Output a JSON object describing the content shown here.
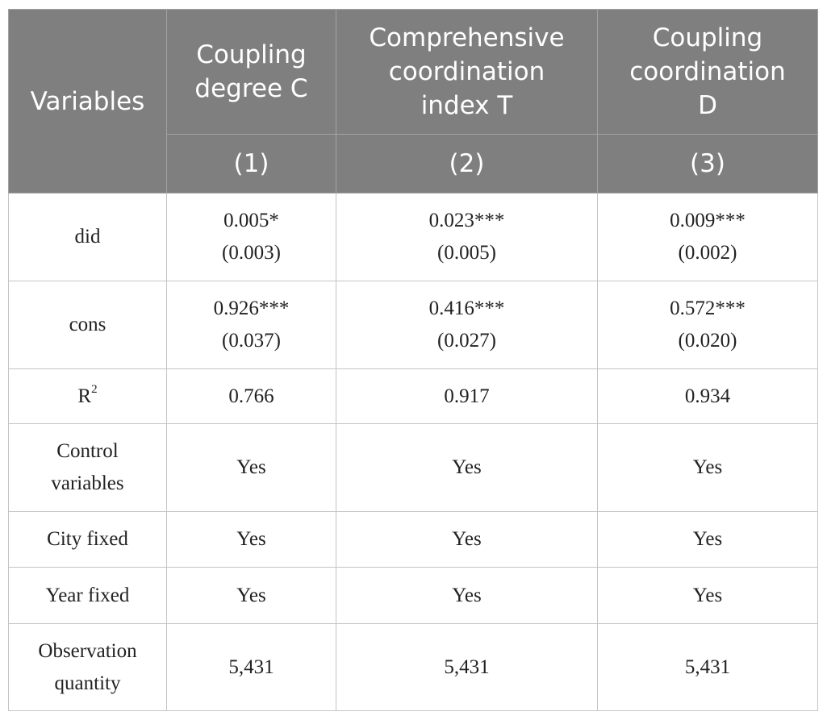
{
  "header": {
    "variables": "Variables",
    "columns": [
      {
        "title_lines": [
          "Coupling",
          "degree C"
        ],
        "number": "(1)"
      },
      {
        "title_lines": [
          "Comprehensive",
          "coordination",
          "index T"
        ],
        "number": "(2)"
      },
      {
        "title_lines": [
          "Coupling",
          "coordination",
          "D"
        ],
        "number": "(3)"
      }
    ]
  },
  "rows": [
    {
      "label_lines": [
        "did"
      ],
      "cells": [
        {
          "lines": [
            "0.005*",
            "(0.003)"
          ]
        },
        {
          "lines": [
            "0.023***",
            "(0.005)"
          ]
        },
        {
          "lines": [
            "0.009***",
            "(0.002)"
          ]
        }
      ]
    },
    {
      "label_lines": [
        "cons"
      ],
      "cells": [
        {
          "lines": [
            "0.926***",
            "(0.037)"
          ]
        },
        {
          "lines": [
            "0.416***",
            "(0.027)"
          ]
        },
        {
          "lines": [
            "0.572***",
            "(0.020)"
          ]
        }
      ]
    },
    {
      "label_base": "R",
      "label_sup": "2",
      "cells": [
        {
          "lines": [
            "0.766"
          ]
        },
        {
          "lines": [
            "0.917"
          ]
        },
        {
          "lines": [
            "0.934"
          ]
        }
      ]
    },
    {
      "label_lines": [
        "Control",
        "variables"
      ],
      "cells": [
        {
          "lines": [
            "Yes"
          ]
        },
        {
          "lines": [
            "Yes"
          ]
        },
        {
          "lines": [
            "Yes"
          ]
        }
      ]
    },
    {
      "label_lines": [
        "City fixed"
      ],
      "cells": [
        {
          "lines": [
            "Yes"
          ]
        },
        {
          "lines": [
            "Yes"
          ]
        },
        {
          "lines": [
            "Yes"
          ]
        }
      ]
    },
    {
      "label_lines": [
        "Year fixed"
      ],
      "cells": [
        {
          "lines": [
            "Yes"
          ]
        },
        {
          "lines": [
            "Yes"
          ]
        },
        {
          "lines": [
            "Yes"
          ]
        }
      ]
    },
    {
      "label_lines": [
        "Observation",
        "quantity"
      ],
      "cells": [
        {
          "lines": [
            "5,431"
          ]
        },
        {
          "lines": [
            "5,431"
          ]
        },
        {
          "lines": [
            "5,431"
          ]
        }
      ]
    }
  ]
}
